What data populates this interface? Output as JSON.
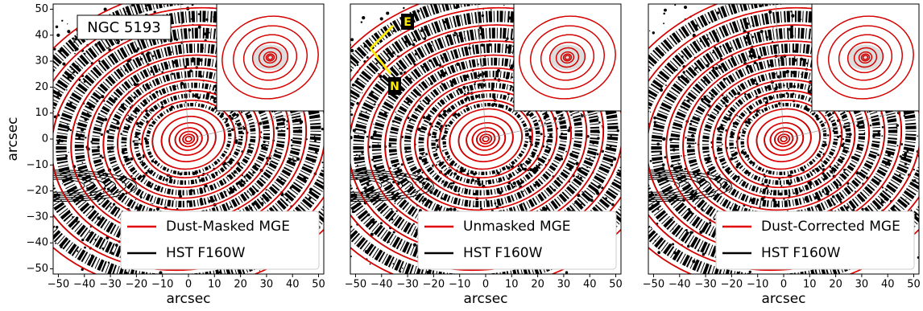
{
  "chart_data": [
    {
      "type": "contour",
      "annotation": "NGC 5193",
      "x_label": "arcsec",
      "y_label": "arcsec",
      "series": [
        {
          "name": "Dust-Masked MGE",
          "color": "#e00000"
        },
        {
          "name": "HST F160W",
          "color": "#000000"
        }
      ],
      "xlim": [
        -52,
        52
      ],
      "ylim": [
        -52,
        52
      ],
      "xticks": [
        {
          "value": -50,
          "label": "−50"
        },
        {
          "value": -40,
          "label": "−40"
        },
        {
          "value": -30,
          "label": "−30"
        },
        {
          "value": -20,
          "label": "−20"
        },
        {
          "value": -10,
          "label": "−10"
        },
        0,
        10,
        20,
        30,
        40,
        50
      ],
      "yticks": [
        {
          "value": -50,
          "label": "−50"
        },
        {
          "value": -40,
          "label": "−40"
        },
        {
          "value": -30,
          "label": "−30"
        },
        {
          "value": -20,
          "label": "−20"
        },
        {
          "value": -10,
          "label": "−10"
        },
        0,
        10,
        20,
        30,
        40,
        50
      ]
    },
    {
      "type": "contour",
      "x_label": "arcsec",
      "compass": {
        "east": "E",
        "north": "N"
      },
      "series": [
        {
          "name": "Unmasked MGE",
          "color": "#e00000"
        },
        {
          "name": "HST F160W",
          "color": "#000000"
        }
      ],
      "xlim": [
        -52,
        52
      ],
      "ylim": [
        -52,
        52
      ],
      "xticks": [
        {
          "value": -50,
          "label": "−50"
        },
        {
          "value": -40,
          "label": "−40"
        },
        {
          "value": -30,
          "label": "−30"
        },
        {
          "value": -20,
          "label": "−20"
        },
        {
          "value": -10,
          "label": "−10"
        },
        0,
        10,
        20,
        30,
        40,
        50
      ]
    },
    {
      "type": "contour",
      "x_label": "arcsec",
      "series": [
        {
          "name": "Dust-Corrected MGE",
          "color": "#e00000"
        },
        {
          "name": "HST F160W",
          "color": "#000000"
        }
      ],
      "xlim": [
        -52,
        52
      ],
      "ylim": [
        -52,
        52
      ],
      "xticks": [
        {
          "value": -50,
          "label": "−50"
        },
        {
          "value": -40,
          "label": "−40"
        },
        {
          "value": -30,
          "label": "−30"
        },
        {
          "value": -20,
          "label": "−20"
        },
        {
          "value": -10,
          "label": "−10"
        },
        0,
        10,
        20,
        30,
        40,
        50
      ]
    }
  ]
}
